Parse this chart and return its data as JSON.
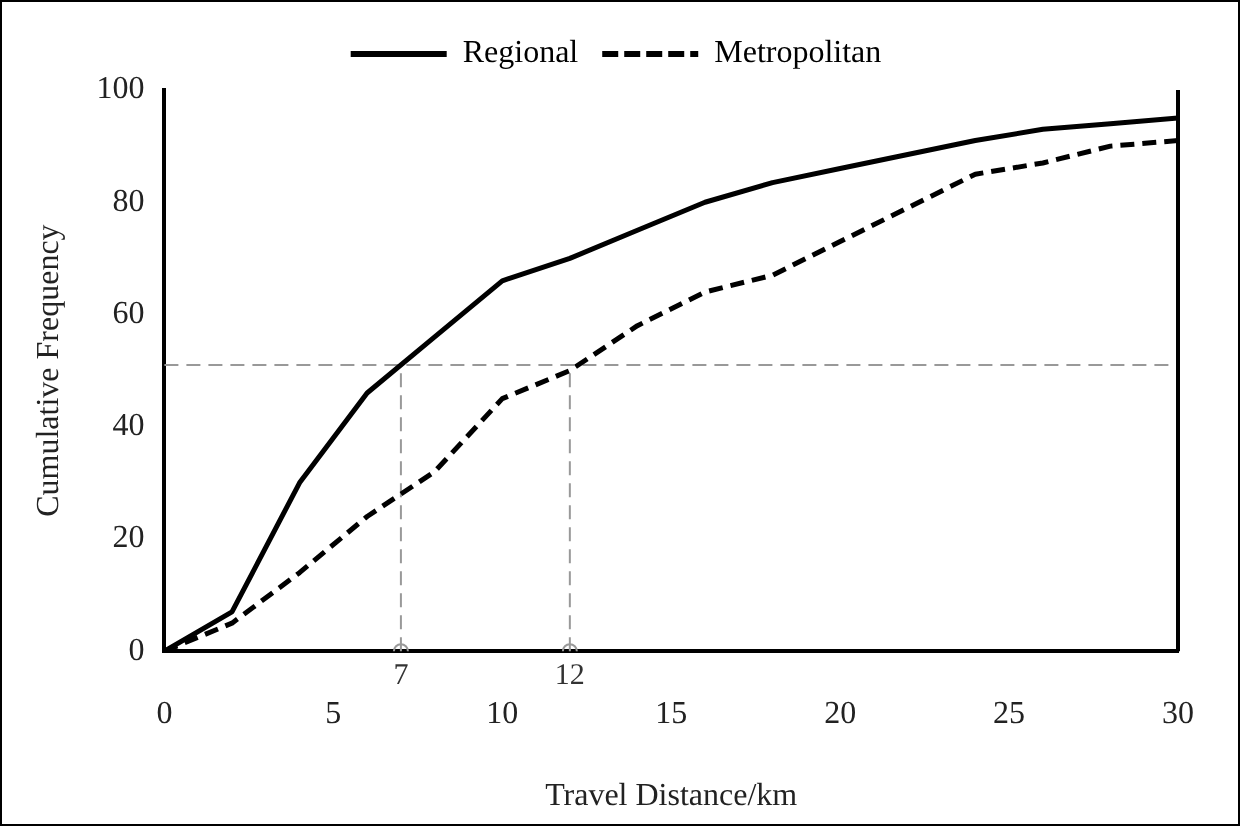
{
  "chart_data": {
    "type": "line",
    "xlabel": "Travel Distance/km",
    "ylabel": "Cumulative Frequency",
    "x": [
      0,
      2,
      4,
      6,
      8,
      10,
      12,
      14,
      16,
      18,
      20,
      22,
      24,
      26,
      28,
      30
    ],
    "series": [
      {
        "name": "Regional",
        "color": "#000000",
        "line_style": "solid",
        "values": [
          0,
          7,
          30,
          46,
          56,
          66,
          70,
          75,
          80,
          83.5,
          86,
          88.5,
          91,
          93,
          94,
          95
        ]
      },
      {
        "name": "Metropolitan",
        "color": "#000000",
        "line_style": "dashed",
        "values": [
          0,
          5,
          14,
          24,
          32,
          45,
          50,
          58,
          64,
          67,
          73,
          79,
          85,
          87,
          90,
          91
        ]
      },
      {
        "type": "scatter",
        "color": "#999999",
        "marker": "circle",
        "x": [
          7,
          12
        ],
        "values": [
          0,
          0
        ]
      }
    ],
    "xlim": [
      0,
      30
    ],
    "xticks": [
      0,
      5,
      10,
      15,
      20,
      25,
      30
    ],
    "ylim": [
      0,
      100
    ],
    "yticks": [
      0,
      20,
      40,
      60,
      80,
      100
    ],
    "ref_lines": [
      {
        "axis": "y",
        "value": 51,
        "color": "#999999",
        "line_style": "dashed"
      },
      {
        "axis": "x",
        "value": 7,
        "label": "7",
        "color": "#999999",
        "line_style": "dashed"
      },
      {
        "axis": "x",
        "value": 12,
        "label": "12",
        "color": "#999999",
        "line_style": "dashed"
      }
    ],
    "grid": false,
    "legend": "top",
    "marker": "none"
  }
}
